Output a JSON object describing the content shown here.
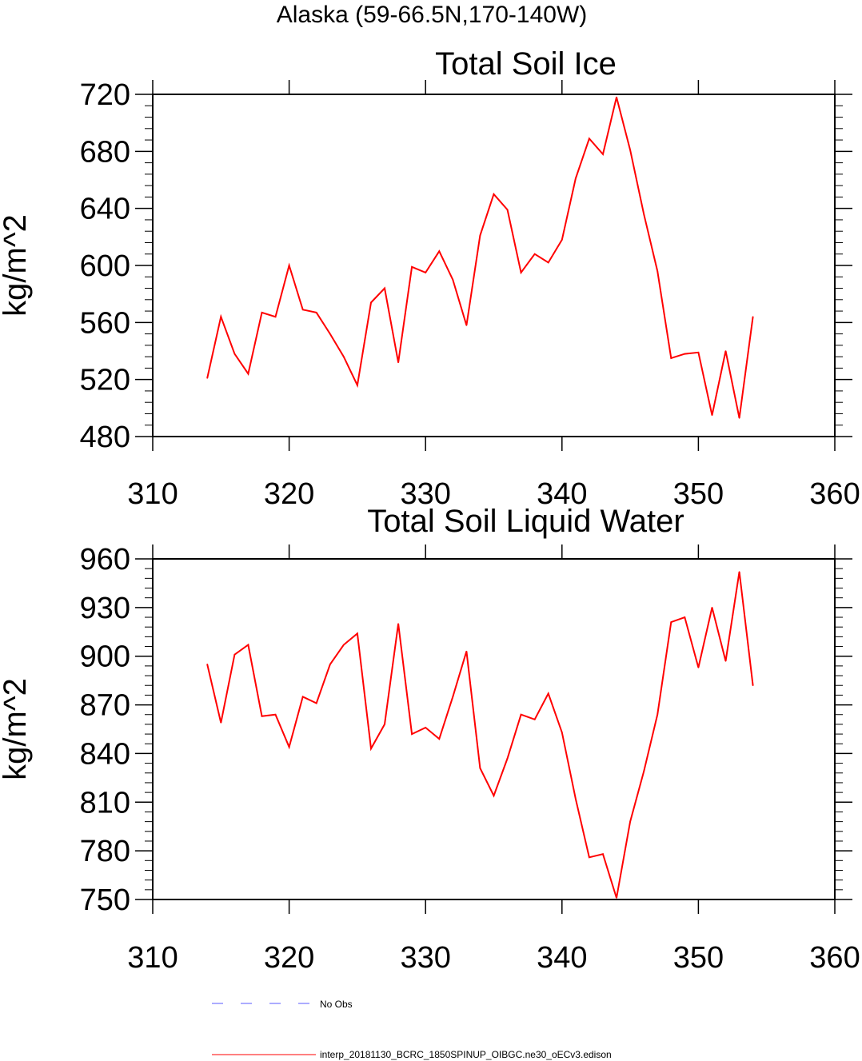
{
  "page_title": "Alaska (59-66.5N,170-140W)",
  "legend": {
    "obs": {
      "label": "No Obs",
      "color": "#5a5aff"
    },
    "model": {
      "label": "interp_20181130_BCRC_1850SPINUP_OIBGC.ne30_oECv3.edison",
      "color": "#ff0000"
    }
  },
  "chart_data": [
    {
      "type": "line",
      "title": "Total Soil Ice",
      "xlabel": "",
      "ylabel": "kg/m^2",
      "xlim": [
        310,
        360
      ],
      "ylim": [
        480,
        720
      ],
      "xticks": [
        310,
        320,
        330,
        340,
        350,
        360
      ],
      "xtick_labels": [
        "310",
        "320",
        "330",
        "340",
        "350",
        "360"
      ],
      "yticks": [
        480,
        520,
        560,
        600,
        640,
        680,
        720
      ],
      "ytick_labels": [
        "480",
        "520",
        "560",
        "600",
        "640",
        "680",
        "720"
      ],
      "y_minor_step": 8,
      "grid": false,
      "series": [
        {
          "name": "interp_20181130_BCRC_1850SPINUP_OIBGC.ne30_oECv3.edison",
          "color": "#ff0000",
          "x": [
            314,
            315,
            316,
            317,
            318,
            319,
            320,
            321,
            322,
            323,
            324,
            325,
            326,
            327,
            328,
            329,
            330,
            331,
            332,
            333,
            334,
            335,
            336,
            337,
            338,
            339,
            340,
            341,
            342,
            343,
            344,
            345,
            346,
            347,
            348,
            349,
            350,
            351,
            352,
            353,
            354
          ],
          "values": [
            521,
            564,
            538,
            524,
            567,
            564,
            600,
            569,
            567,
            552,
            536,
            516,
            574,
            584,
            532,
            599,
            595,
            610,
            590,
            558,
            621,
            650,
            639,
            595,
            608,
            602,
            618,
            661,
            689,
            678,
            718,
            681,
            636,
            596,
            535,
            538,
            539,
            495,
            540,
            493,
            564
          ]
        }
      ]
    },
    {
      "type": "line",
      "title": "Total Soil Liquid Water",
      "xlabel": "",
      "ylabel": "kg/m^2",
      "xlim": [
        310,
        360
      ],
      "ylim": [
        750,
        960
      ],
      "xticks": [
        310,
        320,
        330,
        340,
        350,
        360
      ],
      "xtick_labels": [
        "310",
        "320",
        "330",
        "340",
        "350",
        "360"
      ],
      "yticks": [
        750,
        780,
        810,
        840,
        870,
        900,
        930,
        960
      ],
      "ytick_labels": [
        "750",
        "780",
        "810",
        "840",
        "870",
        "900",
        "930",
        "960"
      ],
      "y_minor_step": 6,
      "grid": false,
      "series": [
        {
          "name": "interp_20181130_BCRC_1850SPINUP_OIBGC.ne30_oECv3.edison",
          "color": "#ff0000",
          "x": [
            314,
            315,
            316,
            317,
            318,
            319,
            320,
            321,
            322,
            323,
            324,
            325,
            326,
            327,
            328,
            329,
            330,
            331,
            332,
            333,
            334,
            335,
            336,
            337,
            338,
            339,
            340,
            341,
            342,
            343,
            344,
            345,
            346,
            347,
            348,
            349,
            350,
            351,
            352,
            353,
            354
          ],
          "values": [
            895,
            859,
            901,
            907,
            863,
            864,
            844,
            875,
            871,
            895,
            907,
            914,
            843,
            858,
            920,
            852,
            856,
            849,
            875,
            903,
            831,
            814,
            837,
            864,
            861,
            877,
            853,
            812,
            776,
            778,
            751,
            798,
            829,
            864,
            921,
            924,
            893,
            930,
            897,
            952,
            882
          ]
        }
      ]
    }
  ]
}
